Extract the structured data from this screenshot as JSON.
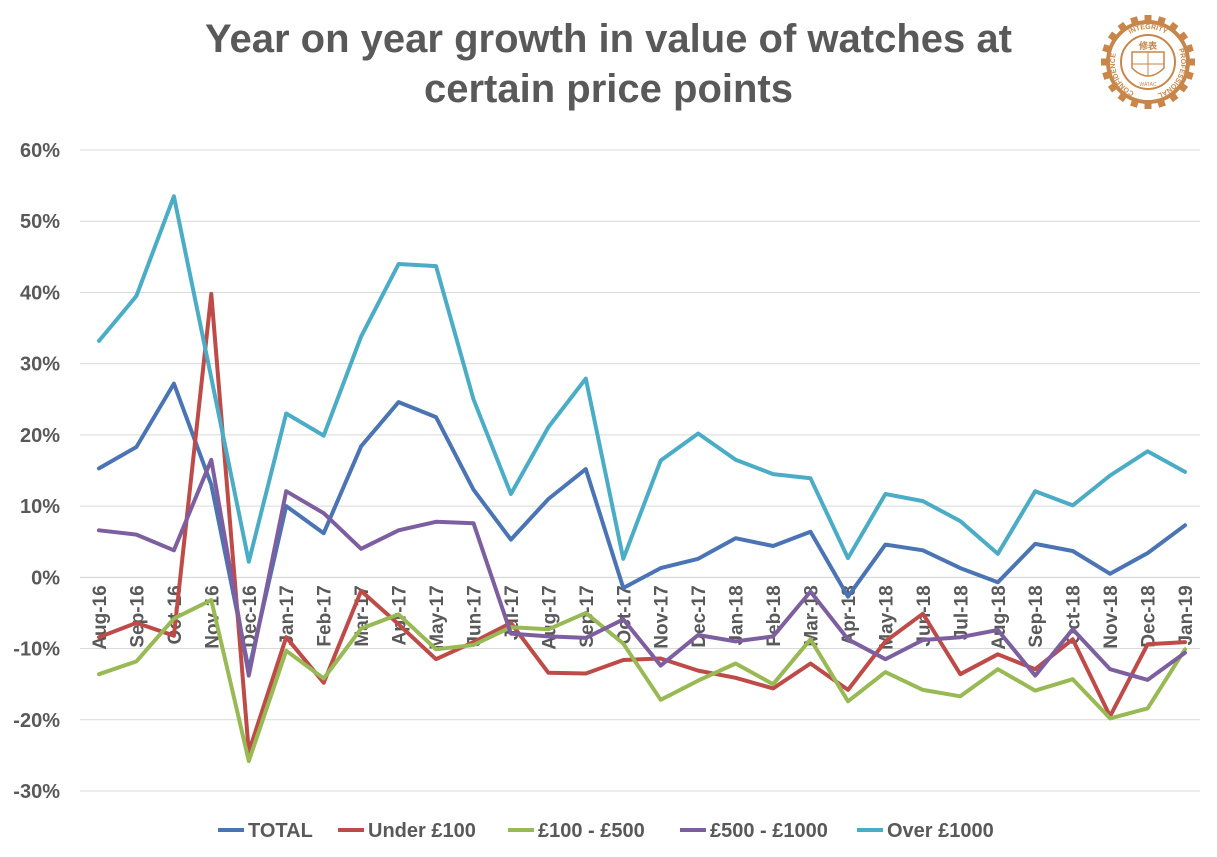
{
  "chart_data": {
    "type": "line",
    "title_line1": "Year on year growth in value of watches at",
    "title_line2": "certain price points",
    "xlabel": "",
    "ylabel": "",
    "ylim": [
      -30,
      60
    ],
    "y_ticks": [
      "60%",
      "50%",
      "40%",
      "30%",
      "20%",
      "10%",
      "0%",
      "-10%",
      "-20%",
      "-30%"
    ],
    "grid": true,
    "legend_position": "bottom",
    "categories": [
      "Aug-16",
      "Sep-16",
      "Oct-16",
      "Nov-16",
      "Dec-16",
      "Jan-17",
      "Feb-17",
      "Mar-17",
      "Apr-17",
      "May-17",
      "Jun-17",
      "Jul-17",
      "Aug-17",
      "Sep-17",
      "Oct-17",
      "Nov-17",
      "Dec-17",
      "Jan-18",
      "Feb-18",
      "Mar-18",
      "Apr-18",
      "May-18",
      "Jun-18",
      "Jul-18",
      "Aug-18",
      "Sep-18",
      "Oct-18",
      "Nov-18",
      "Dec-18",
      "Jan-19"
    ],
    "series": [
      {
        "name": "TOTAL",
        "color": "#4a74b4",
        "values": [
          15.3,
          18.3,
          27.2,
          13.0,
          -13.0,
          10.0,
          6.2,
          18.4,
          24.6,
          22.5,
          12.3,
          5.3,
          11.0,
          15.2,
          -1.5,
          1.3,
          2.6,
          5.5,
          4.4,
          6.4,
          -2.7,
          4.6,
          3.8,
          1.3,
          -0.7,
          4.7,
          3.7,
          0.5,
          3.4,
          7.3
        ]
      },
      {
        "name": "Under £100",
        "color": "#be4b48",
        "values": [
          -8.4,
          -6.4,
          -8.2,
          39.8,
          -24.5,
          -8.4,
          -14.8,
          -1.9,
          -6.6,
          -11.5,
          -9.1,
          -6.4,
          -13.4,
          -13.5,
          -11.6,
          -11.4,
          -13.1,
          -14.1,
          -15.6,
          -12.1,
          -15.8,
          -9.0,
          -5.1,
          -13.6,
          -10.8,
          -12.9,
          -8.7,
          -19.5,
          -9.4,
          -9.1
        ]
      },
      {
        "name": "£100 - £500",
        "color": "#98b954",
        "values": [
          -13.6,
          -11.8,
          -5.8,
          -3.2,
          -25.8,
          -10.3,
          -14.2,
          -7.2,
          -5.2,
          -10.1,
          -9.5,
          -7.0,
          -7.3,
          -5.0,
          -9.3,
          -17.2,
          -14.5,
          -12.1,
          -15.0,
          -8.7,
          -17.4,
          -13.3,
          -15.8,
          -16.7,
          -12.9,
          -15.9,
          -14.3,
          -19.8,
          -18.4,
          -10.1
        ]
      },
      {
        "name": "£500 - £1000",
        "color": "#7d5fa0",
        "values": [
          6.6,
          6.0,
          3.8,
          16.5,
          -13.8,
          12.1,
          9.0,
          4.0,
          6.6,
          7.8,
          7.6,
          -7.9,
          -8.3,
          -8.5,
          -5.9,
          -12.4,
          -8.1,
          -9.0,
          -8.3,
          -2.0,
          -8.7,
          -11.5,
          -8.8,
          -8.4,
          -7.4,
          -13.8,
          -7.3,
          -12.9,
          -14.4,
          -10.6
        ]
      },
      {
        "name": "Over £1000",
        "color": "#4bacc6",
        "values": [
          33.2,
          39.5,
          53.5,
          28.0,
          2.2,
          23.0,
          19.9,
          33.8,
          44.0,
          43.7,
          25.0,
          11.7,
          21.1,
          27.9,
          2.6,
          16.4,
          20.2,
          16.5,
          14.5,
          13.9,
          2.7,
          11.7,
          10.7,
          7.9,
          3.3,
          12.1,
          10.1,
          14.3,
          17.7,
          14.8
        ]
      }
    ]
  },
  "logo": {
    "name": "watch-association-seal",
    "text_top": "INTEGRITY",
    "text_left": "CONFIDENCE",
    "text_right": "PROFESSIONAL",
    "text_center": "修表",
    "text_bottom": "WATAC",
    "color": "#c8864a"
  }
}
